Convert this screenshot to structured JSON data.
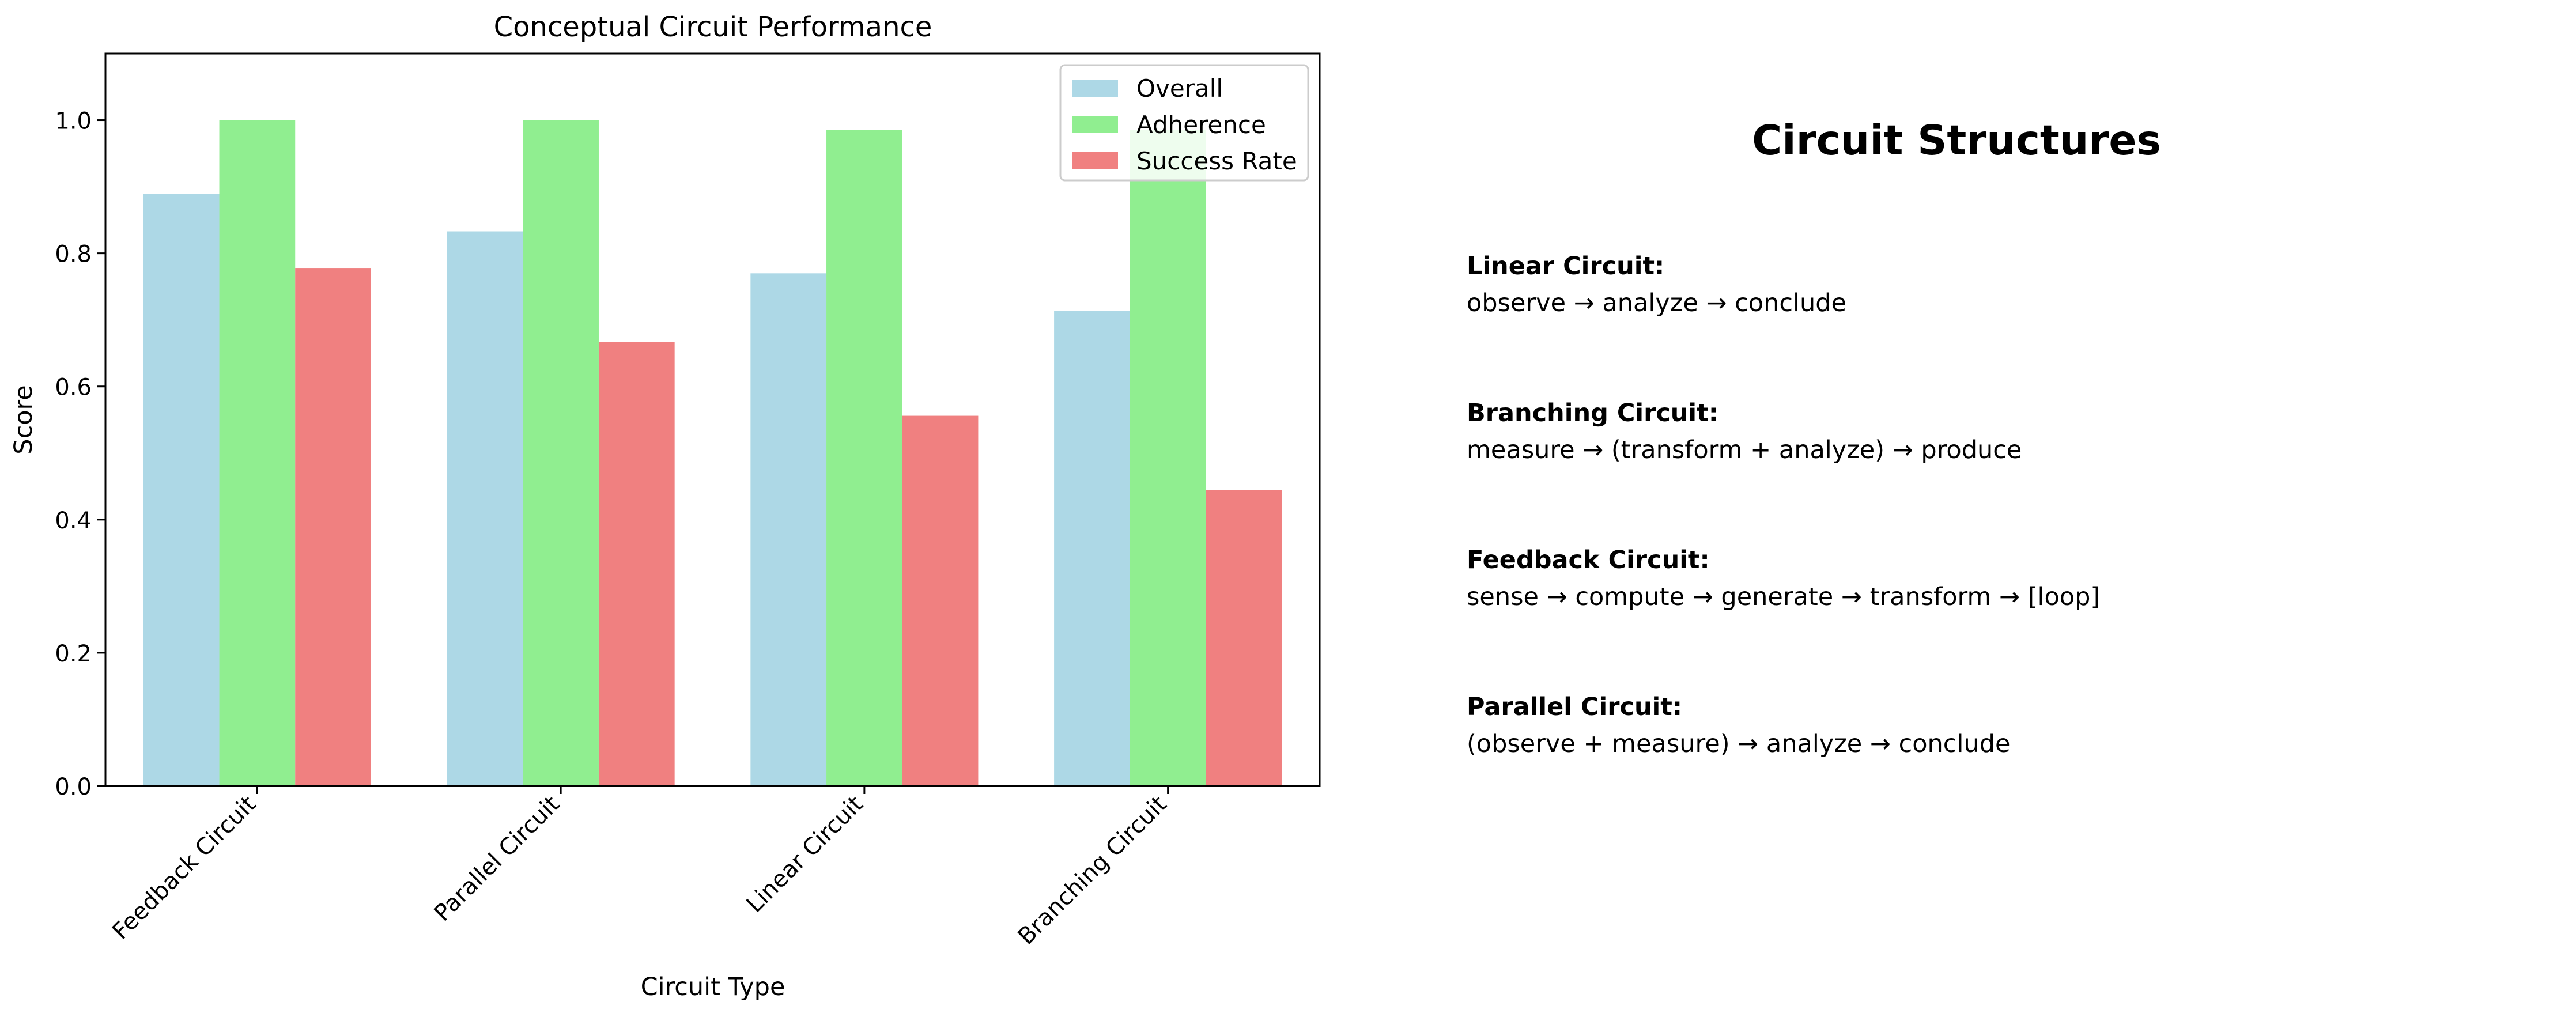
{
  "chart_data": {
    "type": "bar",
    "title": "Conceptual Circuit Performance",
    "xlabel": "Circuit Type",
    "ylabel": "Score",
    "ylim": [
      0,
      1.1
    ],
    "yticks": [
      0.0,
      0.2,
      0.4,
      0.6,
      0.8,
      1.0
    ],
    "ytick_labels": [
      "0.0",
      "0.2",
      "0.4",
      "0.6",
      "0.8",
      "1.0"
    ],
    "categories": [
      "Feedback Circuit",
      "Parallel Circuit",
      "Linear Circuit",
      "Branching Circuit"
    ],
    "series": [
      {
        "name": "Overall",
        "color": "#add8e6",
        "values": [
          0.889,
          0.833,
          0.77,
          0.714
        ]
      },
      {
        "name": "Adherence",
        "color": "#90ee90",
        "values": [
          1.0,
          1.0,
          0.985,
          0.985
        ]
      },
      {
        "name": "Success Rate",
        "color": "#f08080",
        "values": [
          0.778,
          0.667,
          0.556,
          0.444
        ]
      }
    ],
    "legend": "top-right",
    "grid": false
  },
  "panel": {
    "title": "Circuit Structures",
    "entries": [
      {
        "name": "Linear Circuit:",
        "flow": "observe → analyze → conclude"
      },
      {
        "name": "Branching Circuit:",
        "flow": "measure → (transform + analyze) → produce"
      },
      {
        "name": "Feedback Circuit:",
        "flow": "sense → compute → generate → transform → [loop]"
      },
      {
        "name": "Parallel Circuit:",
        "flow": "(observe + measure) → analyze → conclude"
      }
    ]
  }
}
